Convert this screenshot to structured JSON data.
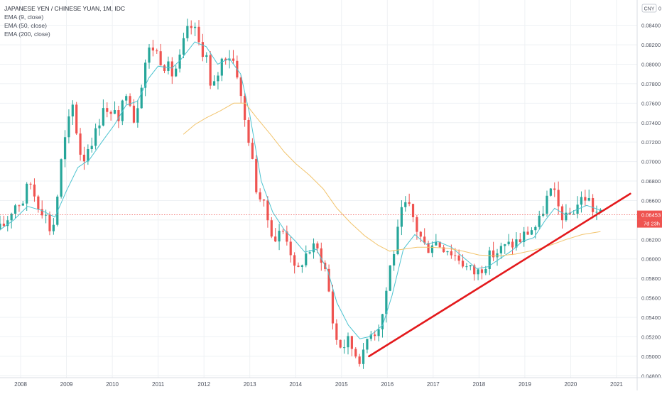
{
  "header": {
    "title": "JAPANESE YEN / CHINESE YUAN, 1M, IDC",
    "indicators": [
      "EMA (9, close)",
      "EMA (50, close)",
      "EMA (200, close)"
    ]
  },
  "price_axis": {
    "currency_badge": "CNY",
    "top_label": "0",
    "last_price_label": "0.06453",
    "countdown_label": "7d 23h"
  },
  "colors": {
    "bull": "#26a69a",
    "bear": "#ef5350",
    "ema9": "#4cc3d0",
    "ema50": "#f2c46d",
    "trendline": "#e3191c",
    "price_tag": "#ef5350",
    "grid": "#eef1f4"
  },
  "chart_data": {
    "type": "candlestick",
    "title": "JAPANESE YEN / CHINESE YUAN, 1M, IDC",
    "xlabel": "",
    "ylabel": "",
    "ylim": [
      0.0478,
      0.0866
    ],
    "xlim": [
      2007.55,
      2021.45
    ],
    "y_ticks": [
      "0.04800",
      "0.05000",
      "0.05200",
      "0.05400",
      "0.05600",
      "0.05800",
      "0.06000",
      "0.06200",
      "0.06400",
      "0.06600",
      "0.06800",
      "0.07000",
      "0.07200",
      "0.07400",
      "0.07600",
      "0.07800",
      "0.08000",
      "0.08200",
      "0.08400"
    ],
    "x_ticks": [
      {
        "label": "2008",
        "value": 2008
      },
      {
        "label": "2009",
        "value": 2009
      },
      {
        "label": "2010",
        "value": 2010
      },
      {
        "label": "2011",
        "value": 2011
      },
      {
        "label": "2012",
        "value": 2012
      },
      {
        "label": "2013",
        "value": 2013
      },
      {
        "label": "2014",
        "value": 2014
      },
      {
        "label": "2015",
        "value": 2015
      },
      {
        "label": "2016",
        "value": 2016
      },
      {
        "label": "2017",
        "value": 2017
      },
      {
        "label": "2018",
        "value": 2018
      },
      {
        "label": "2019",
        "value": 2019
      },
      {
        "label": "2020",
        "value": 2020
      },
      {
        "label": "2021",
        "value": 2021
      }
    ],
    "close_path": [
      [
        2007.55,
        0.063
      ],
      [
        2007.7,
        0.064
      ],
      [
        2007.85,
        0.0656
      ],
      [
        2008.05,
        0.066
      ],
      [
        2008.2,
        0.068
      ],
      [
        2008.35,
        0.066
      ],
      [
        2008.5,
        0.065
      ],
      [
        2008.65,
        0.063
      ],
      [
        2008.75,
        0.064
      ],
      [
        2008.85,
        0.069
      ],
      [
        2009.0,
        0.073
      ],
      [
        2009.15,
        0.076
      ],
      [
        2009.25,
        0.072
      ],
      [
        2009.35,
        0.07
      ],
      [
        2009.5,
        0.072
      ],
      [
        2009.65,
        0.073
      ],
      [
        2009.8,
        0.076
      ],
      [
        2009.95,
        0.074
      ],
      [
        2010.05,
        0.076
      ],
      [
        2010.15,
        0.073
      ],
      [
        2010.25,
        0.077
      ],
      [
        2010.35,
        0.078
      ],
      [
        2010.45,
        0.074
      ],
      [
        2010.55,
        0.076
      ],
      [
        2010.7,
        0.08
      ],
      [
        2010.85,
        0.082
      ],
      [
        2011.0,
        0.081
      ],
      [
        2011.15,
        0.08
      ],
      [
        2011.3,
        0.079
      ],
      [
        2011.45,
        0.08
      ],
      [
        2011.6,
        0.083
      ],
      [
        2011.75,
        0.084
      ],
      [
        2011.9,
        0.082
      ],
      [
        2012.05,
        0.081
      ],
      [
        2012.15,
        0.077
      ],
      [
        2012.25,
        0.078
      ],
      [
        2012.35,
        0.08
      ],
      [
        2012.45,
        0.081
      ],
      [
        2012.55,
        0.081
      ],
      [
        2012.7,
        0.08
      ],
      [
        2012.85,
        0.075
      ],
      [
        2013.0,
        0.072
      ],
      [
        2013.1,
        0.068
      ],
      [
        2013.25,
        0.066
      ],
      [
        2013.4,
        0.064
      ],
      [
        2013.55,
        0.062
      ],
      [
        2013.7,
        0.063
      ],
      [
        2013.85,
        0.062
      ],
      [
        2014.0,
        0.058
      ],
      [
        2014.15,
        0.06
      ],
      [
        2014.3,
        0.061
      ],
      [
        2014.45,
        0.061
      ],
      [
        2014.6,
        0.06
      ],
      [
        2014.75,
        0.056
      ],
      [
        2014.85,
        0.052
      ],
      [
        2015.0,
        0.051
      ],
      [
        2015.15,
        0.0515
      ],
      [
        2015.35,
        0.05
      ],
      [
        2015.5,
        0.05
      ],
      [
        2015.6,
        0.053
      ],
      [
        2015.75,
        0.0525
      ],
      [
        2015.9,
        0.0545
      ],
      [
        2016.05,
        0.059
      ],
      [
        2016.2,
        0.062
      ],
      [
        2016.35,
        0.0655
      ],
      [
        2016.5,
        0.065
      ],
      [
        2016.65,
        0.063
      ],
      [
        2016.85,
        0.061
      ],
      [
        2017.0,
        0.062
      ],
      [
        2017.15,
        0.0615
      ],
      [
        2017.3,
        0.0612
      ],
      [
        2017.45,
        0.0605
      ],
      [
        2017.6,
        0.06
      ],
      [
        2017.75,
        0.059
      ],
      [
        2017.95,
        0.0585
      ],
      [
        2018.1,
        0.0595
      ],
      [
        2018.3,
        0.0605
      ],
      [
        2018.5,
        0.061
      ],
      [
        2018.7,
        0.0615
      ],
      [
        2018.9,
        0.062
      ],
      [
        2019.1,
        0.063
      ],
      [
        2019.3,
        0.0635
      ],
      [
        2019.45,
        0.066
      ],
      [
        2019.6,
        0.067
      ],
      [
        2019.75,
        0.065
      ],
      [
        2019.9,
        0.064
      ],
      [
        2020.05,
        0.065
      ],
      [
        2020.2,
        0.066
      ],
      [
        2020.35,
        0.0665
      ],
      [
        2020.5,
        0.065
      ],
      [
        2020.65,
        0.0645
      ]
    ],
    "series": [
      {
        "name": "EMA (9, close)",
        "color": "#4cc3d0",
        "points": [
          [
            2007.55,
            0.063
          ],
          [
            2007.85,
            0.064
          ],
          [
            2008.15,
            0.0654
          ],
          [
            2008.45,
            0.065
          ],
          [
            2008.75,
            0.0643
          ],
          [
            2009.0,
            0.067
          ],
          [
            2009.25,
            0.0694
          ],
          [
            2009.5,
            0.0702
          ],
          [
            2009.8,
            0.0722
          ],
          [
            2010.05,
            0.0738
          ],
          [
            2010.3,
            0.0758
          ],
          [
            2010.55,
            0.0762
          ],
          [
            2010.8,
            0.0786
          ],
          [
            2011.0,
            0.0798
          ],
          [
            2011.3,
            0.0796
          ],
          [
            2011.5,
            0.0805
          ],
          [
            2011.8,
            0.0823
          ],
          [
            2012.05,
            0.0818
          ],
          [
            2012.3,
            0.08
          ],
          [
            2012.55,
            0.0806
          ],
          [
            2012.8,
            0.079
          ],
          [
            2013.0,
            0.0748
          ],
          [
            2013.25,
            0.068
          ],
          [
            2013.5,
            0.0648
          ],
          [
            2013.75,
            0.063
          ],
          [
            2014.0,
            0.0618
          ],
          [
            2014.2,
            0.0607
          ],
          [
            2014.45,
            0.061
          ],
          [
            2014.7,
            0.0588
          ],
          [
            2014.9,
            0.0555
          ],
          [
            2015.15,
            0.0532
          ],
          [
            2015.4,
            0.0518
          ],
          [
            2015.6,
            0.052
          ],
          [
            2015.9,
            0.0532
          ],
          [
            2016.1,
            0.0562
          ],
          [
            2016.35,
            0.061
          ],
          [
            2016.6,
            0.0625
          ],
          [
            2016.85,
            0.0615
          ],
          [
            2017.1,
            0.0618
          ],
          [
            2017.4,
            0.0612
          ],
          [
            2017.7,
            0.06
          ],
          [
            2017.95,
            0.059
          ],
          [
            2018.2,
            0.0592
          ],
          [
            2018.45,
            0.06
          ],
          [
            2018.7,
            0.0608
          ],
          [
            2018.95,
            0.0618
          ],
          [
            2019.2,
            0.0622
          ],
          [
            2019.45,
            0.064
          ],
          [
            2019.65,
            0.0652
          ],
          [
            2019.9,
            0.0645
          ],
          [
            2020.1,
            0.065
          ],
          [
            2020.35,
            0.0655
          ],
          [
            2020.65,
            0.065
          ]
        ]
      },
      {
        "name": "EMA (50, close)",
        "color": "#f2c46d",
        "points": [
          [
            2011.55,
            0.0728
          ],
          [
            2011.8,
            0.0738
          ],
          [
            2012.05,
            0.0745
          ],
          [
            2012.35,
            0.0752
          ],
          [
            2012.65,
            0.076
          ],
          [
            2012.9,
            0.076
          ],
          [
            2013.15,
            0.0745
          ],
          [
            2013.45,
            0.0728
          ],
          [
            2013.75,
            0.071
          ],
          [
            2014.0,
            0.0698
          ],
          [
            2014.3,
            0.0686
          ],
          [
            2014.6,
            0.0672
          ],
          [
            2014.9,
            0.0652
          ],
          [
            2015.2,
            0.0637
          ],
          [
            2015.5,
            0.0624
          ],
          [
            2015.8,
            0.0614
          ],
          [
            2016.05,
            0.0608
          ],
          [
            2016.35,
            0.061
          ],
          [
            2016.65,
            0.0612
          ],
          [
            2016.95,
            0.0612
          ],
          [
            2017.3,
            0.0611
          ],
          [
            2017.65,
            0.0608
          ],
          [
            2018.0,
            0.0604
          ],
          [
            2018.4,
            0.0603
          ],
          [
            2018.8,
            0.0605
          ],
          [
            2019.2,
            0.0609
          ],
          [
            2019.55,
            0.0614
          ],
          [
            2019.9,
            0.062
          ],
          [
            2020.25,
            0.0625
          ],
          [
            2020.65,
            0.0628
          ]
        ]
      }
    ],
    "trendline": {
      "name": "Support trendline",
      "start": [
        2015.6,
        0.05
      ],
      "end": [
        2021.3,
        0.0667
      ]
    },
    "last_price": 0.06453
  }
}
